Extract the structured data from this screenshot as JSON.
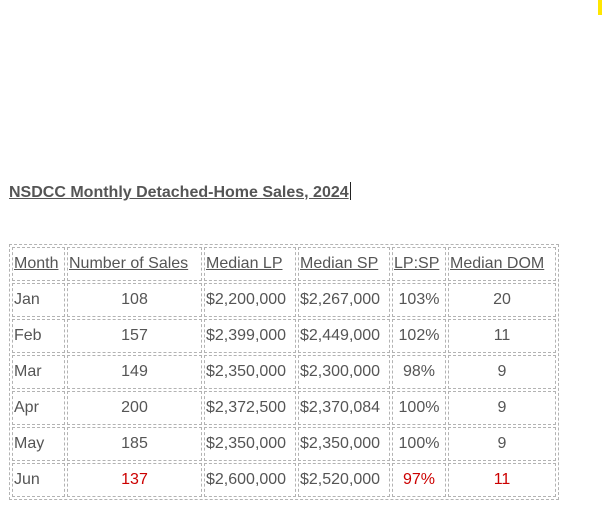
{
  "document": {
    "title": "NSDCC Monthly Detached-Home Sales, 2024"
  },
  "table": {
    "headers": [
      "Month",
      "Number of Sales",
      "Median LP",
      "Median SP",
      "LP:SP",
      "Median DOM"
    ],
    "rows": [
      [
        "Jan",
        "108",
        "$2,200,000",
        "$2,267,000",
        "103%",
        "20"
      ],
      [
        "Feb",
        "157",
        "$2,399,000",
        "$2,449,000",
        "102%",
        "11"
      ],
      [
        "Mar",
        "149",
        "$2,350,000",
        "$2,300,000",
        "98%",
        "9"
      ],
      [
        "Apr",
        "200",
        "$2,372,500",
        "$2,370,084",
        "100%",
        "9"
      ],
      [
        "May",
        "185",
        "$2,350,000",
        "$2,350,000",
        "100%",
        "9"
      ],
      [
        "Jun",
        "137",
        "$2,600,000",
        "$2,520,000",
        "97%",
        "11"
      ]
    ],
    "highlight_color": "#cc0000"
  },
  "colors": {
    "text": "#555555",
    "cell_border": "#b3b3b3",
    "marker": "#ffe600"
  }
}
